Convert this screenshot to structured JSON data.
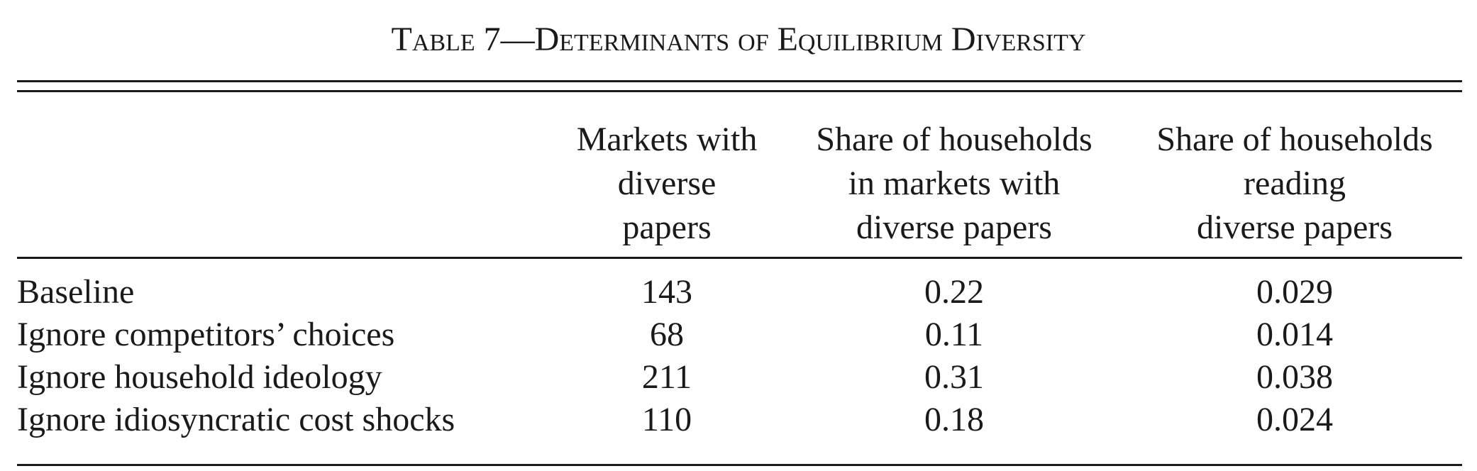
{
  "caption": {
    "prefix": "Table 7—",
    "title": "Determinants of Equilibrium Diversity"
  },
  "columns": [
    [
      "Markets with",
      "diverse",
      "papers"
    ],
    [
      "Share of households",
      "in markets with",
      "diverse papers"
    ],
    [
      "Share of households",
      "reading",
      "diverse papers"
    ]
  ],
  "rows": [
    {
      "label": "Baseline",
      "values": [
        "143",
        "0.22",
        "0.029"
      ]
    },
    {
      "label": "Ignore competitors’ choices",
      "values": [
        "68",
        "0.11",
        "0.014"
      ]
    },
    {
      "label": "Ignore household ideology",
      "values": [
        "211",
        "0.31",
        "0.038"
      ]
    },
    {
      "label": "Ignore idiosyncratic cost shocks",
      "values": [
        "110",
        "0.18",
        "0.024"
      ]
    }
  ]
}
